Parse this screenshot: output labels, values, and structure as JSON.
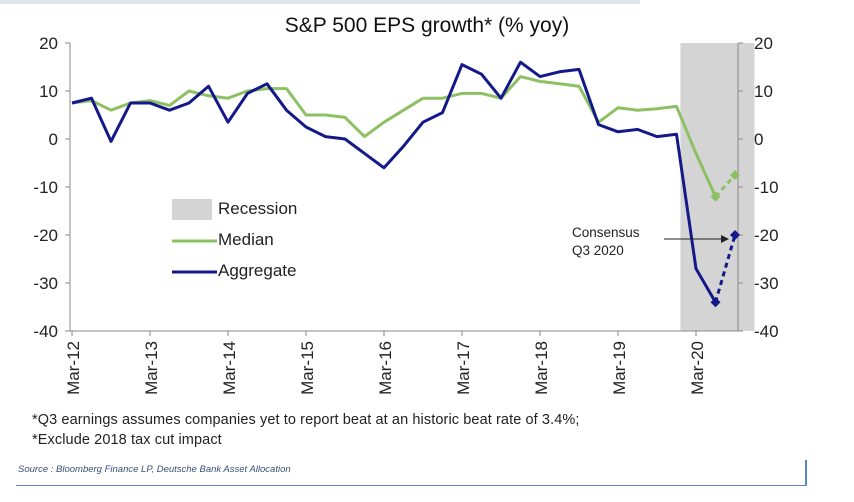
{
  "chart_data": {
    "type": "line",
    "title": "S&P 500 EPS growth* (% yoy)",
    "ylim": [
      -40,
      20
    ],
    "y_ticks": [
      20,
      10,
      0,
      -10,
      -20,
      -30,
      -40
    ],
    "x_tick_labels": [
      "Mar-12",
      "Mar-13",
      "Mar-14",
      "Mar-15",
      "Mar-16",
      "Mar-17",
      "Mar-18",
      "Mar-19",
      "Mar-20"
    ],
    "x_start_label": "Mar-12",
    "quarters_per_tick": 4,
    "recession": {
      "label": "Recession",
      "start_quarter": 31.2,
      "end_quarter": 35.0
    },
    "series": [
      {
        "name": "Median",
        "color": "#8dc063",
        "values": [
          7.5,
          8,
          6,
          7.5,
          8,
          7,
          10,
          9,
          8.5,
          10,
          10.5,
          10.5,
          5,
          5,
          4.5,
          0.5,
          3.5,
          6,
          8.5,
          8.5,
          9.5,
          9.5,
          8.5,
          13,
          12,
          11.5,
          11,
          3.5,
          6.5,
          6,
          6.3,
          6.8,
          -3,
          -12
        ],
        "consensus_value": -7.5
      },
      {
        "name": "Aggregate",
        "color": "#14198a",
        "values": [
          7.5,
          8.5,
          -0.5,
          7.5,
          7.5,
          6,
          7.5,
          11,
          3.5,
          9.5,
          11.5,
          6,
          2.5,
          0.5,
          0,
          -3,
          -6,
          -1.5,
          3.5,
          5.5,
          15.5,
          13.5,
          8.5,
          16,
          13,
          14,
          14.5,
          3,
          1.5,
          2,
          0.5,
          1,
          -27,
          -34
        ],
        "consensus_value": -20
      }
    ],
    "annotation": {
      "line1": "Consensus",
      "line2": "Q3 2020"
    },
    "legend_position": "center-left"
  },
  "footnotes": [
    "*Q3 earnings assumes companies yet to report beat at an historic beat rate of 3.4%;",
    "*Exclude 2018 tax cut impact"
  ],
  "source": "Source : Bloomberg Finance LP, Deutsche Bank Asset Allocation"
}
